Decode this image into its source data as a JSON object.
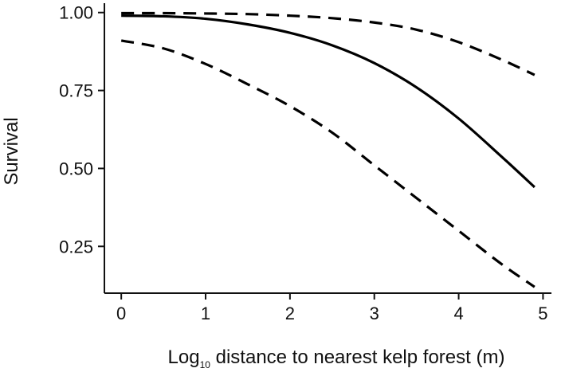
{
  "chart_data": {
    "type": "line",
    "title": "",
    "xlabel_prefix": "Log",
    "xlabel_subscript": "10",
    "xlabel_suffix": " distance to nearest kelp forest (m)",
    "ylabel": "Survival",
    "xlim": [
      -0.2,
      5.1
    ],
    "ylim": [
      0.1,
      1.03
    ],
    "x_ticks": [
      0,
      1,
      2,
      3,
      4,
      5
    ],
    "x_tick_labels": [
      "0",
      "1",
      "2",
      "3",
      "4",
      "5"
    ],
    "y_ticks": [
      0.25,
      0.5,
      0.75,
      1.0
    ],
    "y_tick_labels": [
      "0.25",
      "0.50",
      "0.75",
      "1.00"
    ],
    "grid": false,
    "legend": "none",
    "series": [
      {
        "style": "solid",
        "x": [
          0,
          0.5,
          1,
          1.5,
          2,
          2.5,
          3,
          3.5,
          4,
          4.5,
          4.9
        ],
        "y": [
          0.99,
          0.988,
          0.98,
          0.962,
          0.935,
          0.895,
          0.838,
          0.76,
          0.66,
          0.54,
          0.44
        ]
      },
      {
        "style": "dashed",
        "x": [
          0,
          0.5,
          1,
          1.5,
          2,
          2.5,
          3,
          3.5,
          4,
          4.5,
          4.9
        ],
        "y": [
          0.998,
          0.998,
          0.997,
          0.995,
          0.99,
          0.982,
          0.968,
          0.945,
          0.905,
          0.85,
          0.8
        ]
      },
      {
        "style": "dashed",
        "x": [
          0,
          0.5,
          1,
          1.5,
          2,
          2.5,
          3,
          3.5,
          4,
          4.5,
          4.9
        ],
        "y": [
          0.91,
          0.885,
          0.835,
          0.77,
          0.7,
          0.615,
          0.51,
          0.405,
          0.3,
          0.195,
          0.12
        ]
      }
    ]
  }
}
